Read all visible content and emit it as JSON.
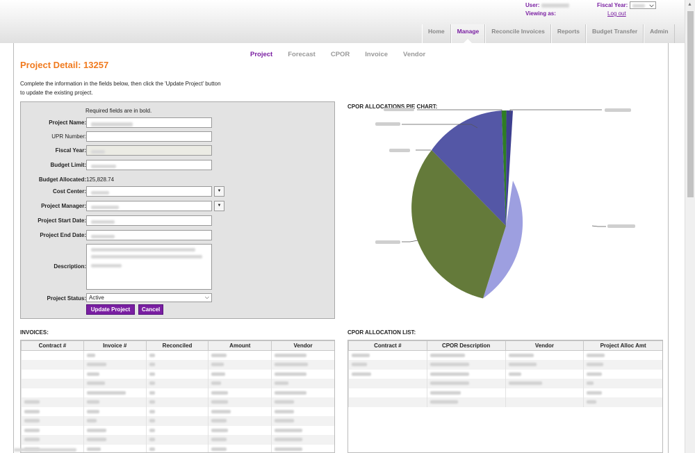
{
  "header": {
    "user_label": "User:",
    "viewing_label": "Viewing as:",
    "fiscal_year_label": "Fiscal Year:",
    "logout_label": "Log out"
  },
  "nav": {
    "items": [
      {
        "label": "Home",
        "active": false
      },
      {
        "label": "Manage",
        "active": true
      },
      {
        "label": "Reconcile Invoices",
        "active": false
      },
      {
        "label": "Reports",
        "active": false
      },
      {
        "label": "Budget Transfer",
        "active": false
      },
      {
        "label": "Admin",
        "active": false
      }
    ]
  },
  "subtabs": [
    {
      "label": "Project",
      "active": true
    },
    {
      "label": "Forecast",
      "active": false
    },
    {
      "label": "CPOR",
      "active": false
    },
    {
      "label": "Invoice",
      "active": false
    },
    {
      "label": "Vendor",
      "active": false
    }
  ],
  "page": {
    "title": "Project Detail: 13257",
    "intro_line1": "Complete the information in the fields below, then click the 'Update Project' button",
    "intro_line2": "to update the existing project."
  },
  "form": {
    "required_note": "Required fields are in bold.",
    "project_name_label": "Project Name:",
    "upr_number_label": "UPR Number:",
    "fiscal_year_label": "Fiscal Year:",
    "budget_limit_label": "Budget Limit:",
    "budget_allocated_label": "Budget Allocated:",
    "budget_allocated_value": "125,828.74",
    "cost_center_label": "Cost Center:",
    "project_manager_label": "Project Manager:",
    "start_date_label": "Project Start Date:",
    "end_date_label": "Project End Date:",
    "description_label": "Description:",
    "status_label": "Project Status:",
    "status_value": "Active",
    "update_button": "Update Project",
    "cancel_button": "Cancel"
  },
  "pie": {
    "title": "CPOR ALLOCATIONS PIE CHART:",
    "colors": [
      "#9d9fe0",
      "#647a3a",
      "#5457a6",
      "#2e7d24",
      "#3d3f8f"
    ]
  },
  "invoices": {
    "title": "INVOICES:",
    "columns": [
      "Contract #",
      "Invoice #",
      "Reconciled",
      "Amount",
      "Vendor"
    ],
    "row_count": 11
  },
  "cpor_list": {
    "title": "CPOR ALLOCATION LIST:",
    "columns": [
      "Contract #",
      "CPOR Description",
      "Vendor",
      "Project Alloc Amt"
    ],
    "row_count": 6
  }
}
